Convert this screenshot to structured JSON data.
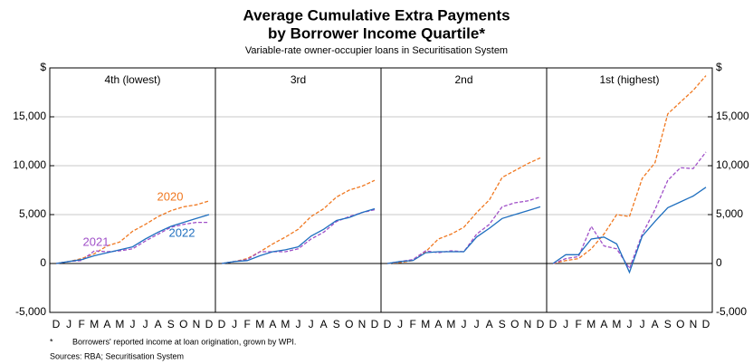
{
  "title": "Average Cumulative Extra Payments",
  "title_line2": "by Borrower Income Quartile*",
  "subtitle": "Variable-rate owner-occupier loans in Securitisation System",
  "footnote_mark": "*",
  "footnote": "Borrowers' reported income at loan origination, grown by WPI.",
  "sources": "Sources: RBA; Securitisation System",
  "chart_data": [
    {
      "type": "line",
      "title": "4th (lowest)",
      "categories": [
        "D",
        "J",
        "F",
        "M",
        "A",
        "M",
        "J",
        "J",
        "A",
        "S",
        "O",
        "N",
        "D"
      ],
      "ylim": [
        -5000,
        20000
      ],
      "yticks": [
        {
          "value": -5000,
          "label": "-5,000"
        },
        0,
        {
          "value": 5000,
          "label": "5,000"
        },
        {
          "value": 10000,
          "label": "10,000"
        },
        {
          "value": 15000,
          "label": "15,000"
        },
        {
          "value": 20000,
          "label": "$"
        }
      ],
      "grid": true,
      "series": [
        {
          "name": "2020",
          "color": "#f07820",
          "dashed": true,
          "values": [
            0,
            200,
            500,
            1000,
            1800,
            2200,
            3300,
            4000,
            4800,
            5400,
            5800,
            6000,
            6400
          ]
        },
        {
          "name": "2021",
          "color": "#a050c8",
          "dashed": true,
          "values": [
            0,
            200,
            300,
            1300,
            1200,
            1300,
            1500,
            2300,
            3000,
            3700,
            4000,
            4200,
            4200
          ]
        },
        {
          "name": "2022",
          "color": "#1f6fbf",
          "dashed": false,
          "values": [
            0,
            200,
            400,
            800,
            1100,
            1400,
            1700,
            2500,
            3200,
            3800,
            4200,
            4600,
            5000
          ]
        }
      ]
    },
    {
      "type": "line",
      "title": "3rd",
      "categories": [
        "D",
        "J",
        "F",
        "M",
        "A",
        "M",
        "J",
        "J",
        "A",
        "S",
        "O",
        "N",
        "D"
      ],
      "ylim": [
        -5000,
        20000
      ],
      "yticks": [
        {
          "value": -5000,
          "label": "-5,000"
        },
        0,
        {
          "value": 5000,
          "label": "5,000"
        },
        {
          "value": 10000,
          "label": "10,000"
        },
        {
          "value": 15000,
          "label": "15,000"
        },
        {
          "value": 20000,
          "label": "$"
        }
      ],
      "grid": true,
      "series": [
        {
          "name": "2020",
          "color": "#f07820",
          "dashed": true,
          "values": [
            0,
            200,
            500,
            1200,
            2000,
            2700,
            3500,
            4800,
            5600,
            6800,
            7500,
            7900,
            8500
          ]
        },
        {
          "name": "2021",
          "color": "#a050c8",
          "dashed": true,
          "values": [
            0,
            200,
            400,
            1200,
            1200,
            1200,
            1500,
            2500,
            3200,
            4300,
            4800,
            5200,
            5500
          ]
        },
        {
          "name": "2022",
          "color": "#1f6fbf",
          "dashed": false,
          "values": [
            0,
            200,
            300,
            800,
            1200,
            1400,
            1700,
            2800,
            3500,
            4400,
            4700,
            5200,
            5600
          ]
        }
      ]
    },
    {
      "type": "line",
      "title": "2nd",
      "categories": [
        "D",
        "J",
        "F",
        "M",
        "A",
        "M",
        "J",
        "J",
        "A",
        "S",
        "O",
        "N",
        "D"
      ],
      "ylim": [
        -5000,
        20000
      ],
      "yticks": [
        {
          "value": -5000,
          "label": "-5,000"
        },
        0,
        {
          "value": 5000,
          "label": "5,000"
        },
        {
          "value": 10000,
          "label": "10,000"
        },
        {
          "value": 15000,
          "label": "15,000"
        },
        {
          "value": 20000,
          "label": "$"
        }
      ],
      "grid": true,
      "series": [
        {
          "name": "2020",
          "color": "#f07820",
          "dashed": true,
          "values": [
            0,
            100,
            300,
            1200,
            2500,
            3000,
            3700,
            5200,
            6500,
            8800,
            9500,
            10200,
            10800
          ]
        },
        {
          "name": "2021",
          "color": "#a050c8",
          "dashed": true,
          "values": [
            0,
            200,
            400,
            1300,
            1100,
            1300,
            1200,
            3000,
            4000,
            5800,
            6200,
            6400,
            6800
          ]
        },
        {
          "name": "2022",
          "color": "#1f6fbf",
          "dashed": false,
          "values": [
            0,
            200,
            300,
            1100,
            1200,
            1200,
            1200,
            2700,
            3600,
            4600,
            5000,
            5400,
            5800
          ]
        }
      ]
    },
    {
      "type": "line",
      "title": "1st (highest)",
      "categories": [
        "D",
        "J",
        "F",
        "M",
        "A",
        "M",
        "J",
        "J",
        "A",
        "S",
        "O",
        "N",
        "D"
      ],
      "ylim": [
        -5000,
        20000
      ],
      "yticks": [
        {
          "value": -5000,
          "label": "-5,000"
        },
        0,
        {
          "value": 5000,
          "label": "5,000"
        },
        {
          "value": 10000,
          "label": "10,000"
        },
        {
          "value": 15000,
          "label": "15,000"
        },
        {
          "value": 20000,
          "label": "$"
        }
      ],
      "grid": true,
      "series": [
        {
          "name": "2020",
          "color": "#f07820",
          "dashed": true,
          "values": [
            0,
            300,
            500,
            1500,
            3000,
            5000,
            4800,
            8700,
            10300,
            15300,
            16500,
            17700,
            19200
          ]
        },
        {
          "name": "2021",
          "color": "#a050c8",
          "dashed": true,
          "values": [
            0,
            500,
            700,
            3800,
            1800,
            1500,
            -500,
            3000,
            5500,
            8500,
            9800,
            9700,
            11400
          ]
        },
        {
          "name": "2022",
          "color": "#1f6fbf",
          "dashed": false,
          "values": [
            0,
            900,
            900,
            2500,
            2700,
            2000,
            -900,
            2800,
            4300,
            5700,
            6300,
            6900,
            7800
          ]
        }
      ]
    }
  ]
}
